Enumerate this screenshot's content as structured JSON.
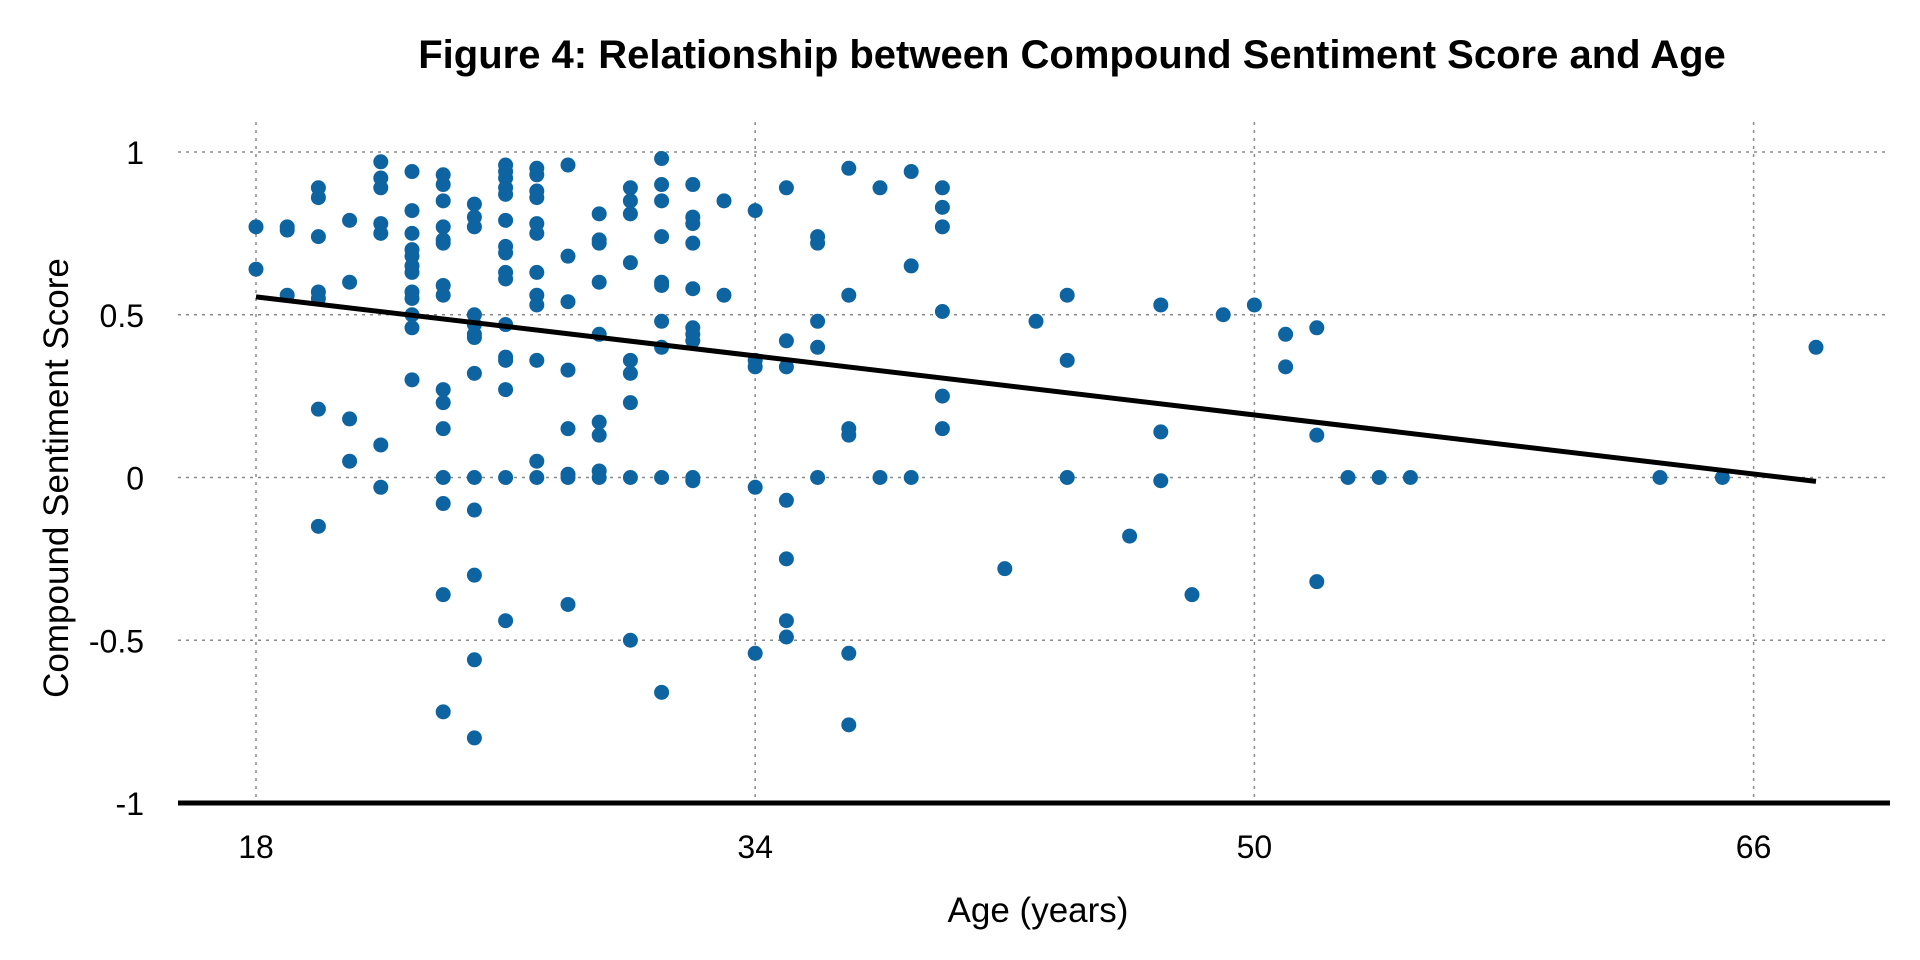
{
  "chart_data": {
    "type": "scatter",
    "title": "Figure 4: Relationship between Compound Sentiment Score and Age",
    "xlabel": "Age (years)",
    "ylabel": "Compound Sentiment Score",
    "xlim": [
      15.5,
      70.5
    ],
    "ylim": [
      -1,
      1
    ],
    "xticks": [
      18,
      34,
      50,
      66
    ],
    "yticks": [
      1,
      0.5,
      0,
      -0.5,
      -1
    ],
    "ytick_labels": [
      "1",
      "0.5",
      "0",
      "-0.5",
      "-1"
    ],
    "grid": true,
    "legend": "none",
    "colors": {
      "points": "#0e64a0",
      "trend": "#000000",
      "grid": "#8a8a8a"
    },
    "trendline": {
      "x": [
        18,
        68
      ],
      "y": [
        0.555,
        -0.012
      ]
    },
    "series": [
      {
        "points": [
          [
            18,
            0.77
          ],
          [
            18,
            0.64
          ],
          [
            19,
            0.77
          ],
          [
            19,
            0.76
          ],
          [
            19,
            0.56
          ],
          [
            20,
            0.89
          ],
          [
            20,
            0.86
          ],
          [
            20,
            0.74
          ],
          [
            20,
            0.57
          ],
          [
            20,
            0.55
          ],
          [
            20,
            0.21
          ],
          [
            20,
            -0.15
          ],
          [
            21,
            0.79
          ],
          [
            21,
            0.6
          ],
          [
            21,
            0.18
          ],
          [
            21,
            0.05
          ],
          [
            22,
            0.97
          ],
          [
            22,
            0.92
          ],
          [
            22,
            0.89
          ],
          [
            22,
            0.78
          ],
          [
            22,
            0.75
          ],
          [
            22,
            0.1
          ],
          [
            22,
            -0.03
          ],
          [
            23,
            0.94
          ],
          [
            23,
            0.82
          ],
          [
            23,
            0.75
          ],
          [
            23,
            0.7
          ],
          [
            23,
            0.68
          ],
          [
            23,
            0.65
          ],
          [
            23,
            0.63
          ],
          [
            23,
            0.57
          ],
          [
            23,
            0.55
          ],
          [
            23,
            0.5
          ],
          [
            23,
            0.46
          ],
          [
            23,
            0.3
          ],
          [
            24,
            0.93
          ],
          [
            24,
            0.9
          ],
          [
            24,
            0.85
          ],
          [
            24,
            0.77
          ],
          [
            24,
            0.73
          ],
          [
            24,
            0.72
          ],
          [
            24,
            0.59
          ],
          [
            24,
            0.56
          ],
          [
            24,
            0.27
          ],
          [
            24,
            0.23
          ],
          [
            24,
            0.15
          ],
          [
            24,
            0.0
          ],
          [
            24,
            -0.08
          ],
          [
            24,
            -0.36
          ],
          [
            24,
            -0.72
          ],
          [
            25,
            0.84
          ],
          [
            25,
            0.8
          ],
          [
            25,
            0.77
          ],
          [
            25,
            0.5
          ],
          [
            25,
            0.47
          ],
          [
            25,
            0.44
          ],
          [
            25,
            0.43
          ],
          [
            25,
            0.32
          ],
          [
            25,
            0.0
          ],
          [
            25,
            -0.1
          ],
          [
            25,
            -0.3
          ],
          [
            25,
            -0.56
          ],
          [
            25,
            -0.8
          ],
          [
            26,
            0.96
          ],
          [
            26,
            0.94
          ],
          [
            26,
            0.92
          ],
          [
            26,
            0.89
          ],
          [
            26,
            0.87
          ],
          [
            26,
            0.79
          ],
          [
            26,
            0.71
          ],
          [
            26,
            0.69
          ],
          [
            26,
            0.63
          ],
          [
            26,
            0.61
          ],
          [
            26,
            0.47
          ],
          [
            26,
            0.37
          ],
          [
            26,
            0.36
          ],
          [
            26,
            0.27
          ],
          [
            26,
            0.0
          ],
          [
            26,
            -0.44
          ],
          [
            27,
            0.95
          ],
          [
            27,
            0.93
          ],
          [
            27,
            0.88
          ],
          [
            27,
            0.86
          ],
          [
            27,
            0.78
          ],
          [
            27,
            0.75
          ],
          [
            27,
            0.63
          ],
          [
            27,
            0.56
          ],
          [
            27,
            0.53
          ],
          [
            27,
            0.36
          ],
          [
            27,
            0.05
          ],
          [
            27,
            0.0
          ],
          [
            28,
            0.96
          ],
          [
            28,
            0.68
          ],
          [
            28,
            0.54
          ],
          [
            28,
            0.33
          ],
          [
            28,
            0.15
          ],
          [
            28,
            0.01
          ],
          [
            28,
            0.0
          ],
          [
            28,
            -0.39
          ],
          [
            29,
            0.81
          ],
          [
            29,
            0.73
          ],
          [
            29,
            0.72
          ],
          [
            29,
            0.6
          ],
          [
            29,
            0.44
          ],
          [
            29,
            0.17
          ],
          [
            29,
            0.13
          ],
          [
            29,
            0.02
          ],
          [
            29,
            0.0
          ],
          [
            30,
            0.89
          ],
          [
            30,
            0.85
          ],
          [
            30,
            0.81
          ],
          [
            30,
            0.66
          ],
          [
            30,
            0.36
          ],
          [
            30,
            0.32
          ],
          [
            30,
            0.23
          ],
          [
            30,
            0.0
          ],
          [
            30,
            -0.5
          ],
          [
            31,
            0.98
          ],
          [
            31,
            0.9
          ],
          [
            31,
            0.85
          ],
          [
            31,
            0.74
          ],
          [
            31,
            0.6
          ],
          [
            31,
            0.59
          ],
          [
            31,
            0.48
          ],
          [
            31,
            0.4
          ],
          [
            31,
            0.0
          ],
          [
            31,
            -0.66
          ],
          [
            32,
            0.9
          ],
          [
            32,
            0.8
          ],
          [
            32,
            0.78
          ],
          [
            32,
            0.72
          ],
          [
            32,
            0.58
          ],
          [
            32,
            0.46
          ],
          [
            32,
            0.44
          ],
          [
            32,
            0.42
          ],
          [
            32,
            0.0
          ],
          [
            32,
            -0.01
          ],
          [
            33,
            0.85
          ],
          [
            33,
            0.56
          ],
          [
            34,
            0.82
          ],
          [
            34,
            0.36
          ],
          [
            34,
            0.34
          ],
          [
            34,
            -0.03
          ],
          [
            34,
            -0.54
          ],
          [
            35,
            0.89
          ],
          [
            35,
            0.42
          ],
          [
            35,
            0.34
          ],
          [
            35,
            -0.07
          ],
          [
            35,
            -0.25
          ],
          [
            35,
            -0.44
          ],
          [
            35,
            -0.49
          ],
          [
            36,
            0.74
          ],
          [
            36,
            0.72
          ],
          [
            36,
            0.48
          ],
          [
            36,
            0.4
          ],
          [
            36,
            0.0
          ],
          [
            37,
            0.95
          ],
          [
            37,
            0.56
          ],
          [
            37,
            0.15
          ],
          [
            37,
            0.13
          ],
          [
            37,
            -0.54
          ],
          [
            37,
            -0.76
          ],
          [
            38,
            0.89
          ],
          [
            38,
            0.0
          ],
          [
            39,
            0.94
          ],
          [
            39,
            0.65
          ],
          [
            39,
            0.0
          ],
          [
            40,
            0.89
          ],
          [
            40,
            0.83
          ],
          [
            40,
            0.77
          ],
          [
            40,
            0.51
          ],
          [
            40,
            0.25
          ],
          [
            40,
            0.15
          ],
          [
            42,
            -0.28
          ],
          [
            43,
            0.48
          ],
          [
            44,
            0.56
          ],
          [
            44,
            0.36
          ],
          [
            44,
            0.0
          ],
          [
            46,
            -0.18
          ],
          [
            47,
            0.53
          ],
          [
            47,
            0.14
          ],
          [
            47,
            -0.01
          ],
          [
            48,
            -0.36
          ],
          [
            49,
            0.5
          ],
          [
            50,
            0.53
          ],
          [
            51,
            0.44
          ],
          [
            51,
            0.34
          ],
          [
            52,
            0.46
          ],
          [
            52,
            0.13
          ],
          [
            52,
            -0.32
          ],
          [
            53,
            0.0
          ],
          [
            54,
            0.0
          ],
          [
            55,
            0.0
          ],
          [
            63,
            0.0
          ],
          [
            65,
            0.0
          ],
          [
            68,
            0.4
          ]
        ]
      }
    ]
  }
}
